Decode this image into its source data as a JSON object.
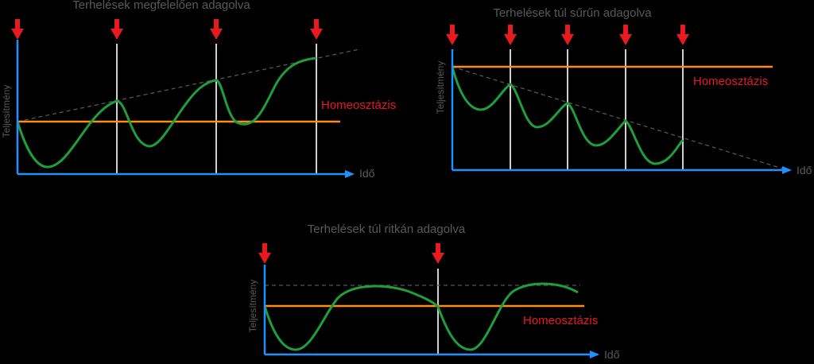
{
  "colors": {
    "background": "#000000",
    "axis": "#1e90ff",
    "homeostasis": "#ff8c1a",
    "curve": "#1f9e3c",
    "marker": "#e8191f",
    "vline": "#cfcfcf",
    "trend": "#555555",
    "text": "#595959"
  },
  "panels": {
    "p1": {
      "title": "Terhelések megfelelően adagolva",
      "ylabel": "Teljesítmény",
      "xlabel": "Idő",
      "homeo_label": "Homeosztázis"
    },
    "p2": {
      "title": "Terhelések túl sűrűn adagolva",
      "ylabel": "Teljesítmény",
      "xlabel": "Idő",
      "homeo_label": "Homeosztázis"
    },
    "p3": {
      "title": "Terhelések túl ritkán adagolva",
      "ylabel": "Teljesítmény",
      "xlabel": "Idő",
      "homeo_label": "Homeosztázis"
    }
  }
}
